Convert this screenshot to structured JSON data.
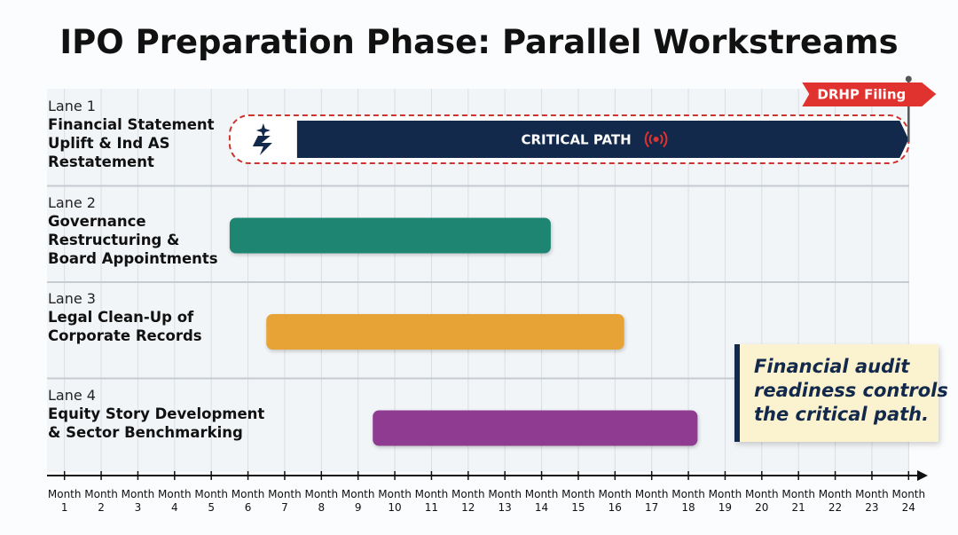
{
  "chart_data": {
    "type": "gantt",
    "title": "IPO Preparation Phase: Parallel Workstreams",
    "lanes": [
      {
        "lane": "Lane 1",
        "name": [
          "Financial Statement",
          "Uplift & Ind AS",
          "Restatement"
        ],
        "start": 5.5,
        "end": 24,
        "color": "#13294b",
        "label": "CRITICAL PATH",
        "critical": true
      },
      {
        "lane": "Lane 2",
        "name": [
          "Governance",
          "Restructuring &",
          "Board Appointments"
        ],
        "start": 5.5,
        "end": 14.25,
        "color": "#1e8573"
      },
      {
        "lane": "Lane 3",
        "name": [
          "Legal Clean-Up of",
          "Corporate Records"
        ],
        "start": 6.5,
        "end": 16.25,
        "color": "#e8a337"
      },
      {
        "lane": "Lane 4",
        "name": [
          "Equity Story Development",
          "& Sector Benchmarking"
        ],
        "start": 9.4,
        "end": 18.25,
        "color": "#8e3b91"
      }
    ],
    "milestone": {
      "label": "DRHP Filing",
      "x": 24,
      "color": "#e0332f"
    },
    "annotation": [
      "Financial audit",
      "readiness controls",
      "the critical path."
    ],
    "xlim": [
      0.5,
      24.5
    ],
    "xticks": [
      {
        "value": 1,
        "label": "Month 1"
      },
      {
        "value": 2,
        "label": "Month 2"
      },
      {
        "value": 3,
        "label": "Month 3"
      },
      {
        "value": 4,
        "label": "Month 4"
      },
      {
        "value": 5,
        "label": "Month 5"
      },
      {
        "value": 6,
        "label": "Month 6"
      },
      {
        "value": 7,
        "label": "Month 7"
      },
      {
        "value": 8,
        "label": "Month 8"
      },
      {
        "value": 9,
        "label": "Month 9"
      },
      {
        "value": 10,
        "label": "Month 10"
      },
      {
        "value": 11,
        "label": "Month 11"
      },
      {
        "value": 12,
        "label": "Month 12"
      },
      {
        "value": 13,
        "label": "Month 13"
      },
      {
        "value": 14,
        "label": "Month 14"
      },
      {
        "value": 15,
        "label": "Month 15"
      },
      {
        "value": 16,
        "label": "Month 16"
      },
      {
        "value": 17,
        "label": "Month 17"
      },
      {
        "value": 18,
        "label": "Month 18"
      },
      {
        "value": 19,
        "label": "Month 19"
      },
      {
        "value": 20,
        "label": "Month 20"
      },
      {
        "value": 21,
        "label": "Month 21"
      },
      {
        "value": 22,
        "label": "Month 22"
      },
      {
        "value": 23,
        "label": "Month 23"
      },
      {
        "value": 24,
        "label": "Month 24"
      }
    ],
    "grid": true
  }
}
